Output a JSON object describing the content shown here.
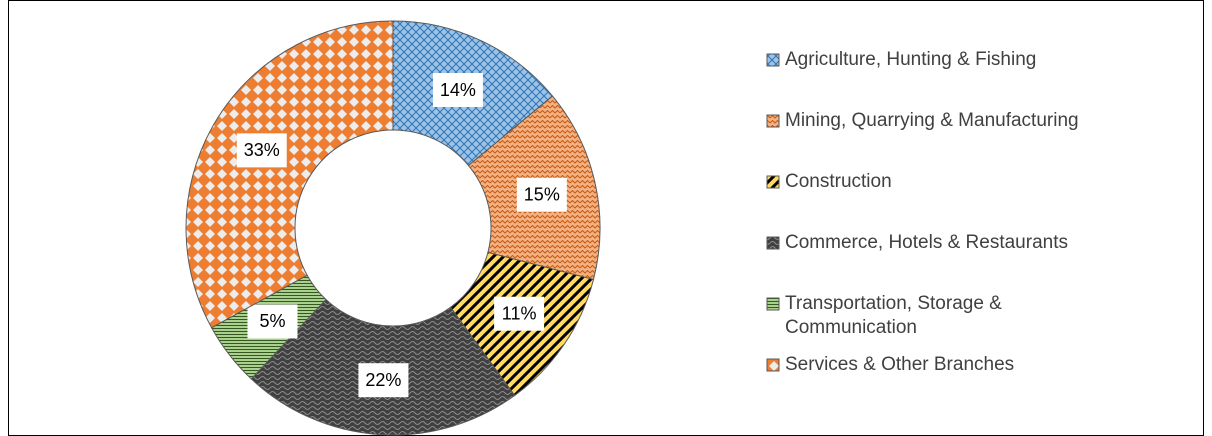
{
  "chart_data": {
    "type": "donut",
    "categories": [
      "Agriculture, Hunting & Fishing",
      "Mining, Quarrying & Manufacturing",
      "Construction",
      "Commerce, Hotels & Restaurants",
      "Transportation, Storage & Communication",
      "Services & Other Branches"
    ],
    "values": [
      14,
      15,
      11,
      22,
      5,
      33
    ],
    "value_labels": [
      "14%",
      "15%",
      "11%",
      "22%",
      "5%",
      "33%"
    ],
    "colors": [
      "#9dc3e6",
      "#f4b183",
      "#ffd966",
      "#404040",
      "#a9d18e",
      "#ed7d31"
    ],
    "patterns": [
      "crosshatch",
      "zigzag",
      "diagonal",
      "wave",
      "horizontal",
      "diamond"
    ],
    "legend": "right"
  }
}
